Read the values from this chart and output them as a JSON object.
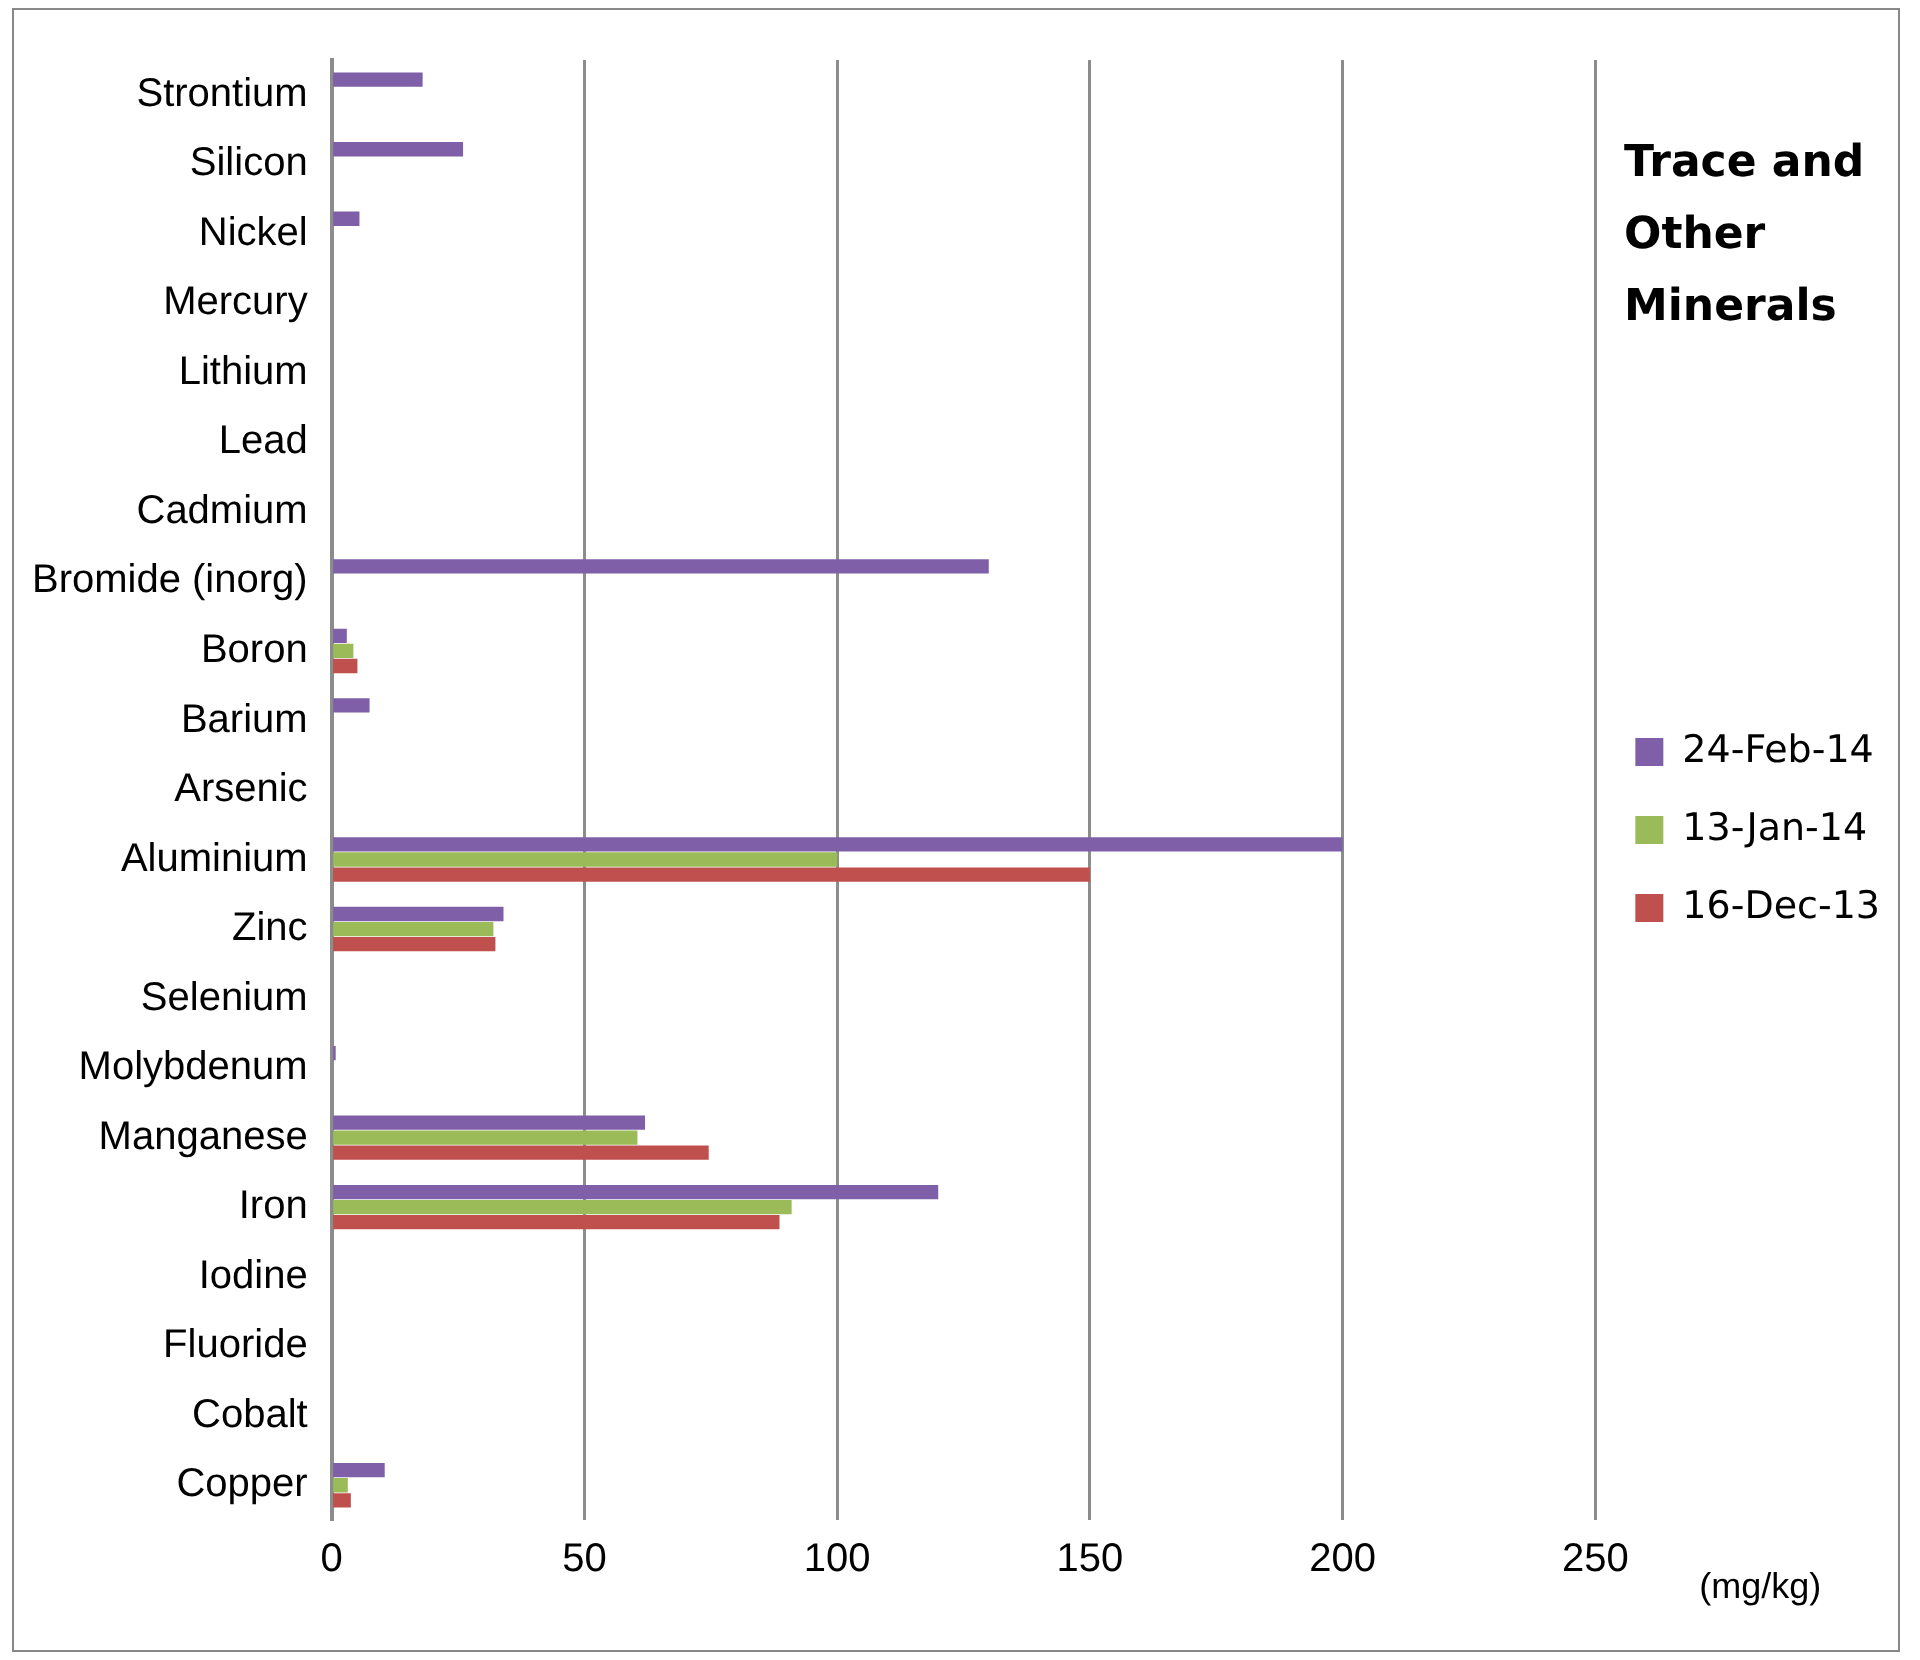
{
  "chart_data": {
    "type": "bar",
    "orientation": "horizontal",
    "title": "Trace and Other Minerals",
    "xlabel": "(mg/kg)",
    "categories": [
      "Strontium",
      "Silicon",
      "Nickel",
      "Mercury",
      "Lithium",
      "Lead",
      "Cadmium",
      "Bromide (inorg)",
      "Boron",
      "Barium",
      "Arsenic",
      "Aluminium",
      "Zinc",
      "Selenium",
      "Molybdenum",
      "Manganese",
      "Iron",
      "Iodine",
      "Fluoride",
      "Cobalt",
      "Copper"
    ],
    "series": [
      {
        "name": "24-Feb-14",
        "color": "#7f5fa8",
        "values": [
          18,
          26,
          5.5,
          null,
          null,
          null,
          null,
          130,
          3,
          7.5,
          null,
          200,
          34,
          null,
          0.8,
          62,
          120,
          null,
          null,
          null,
          10.5
        ]
      },
      {
        "name": "13-Jan-14",
        "color": "#9bbb59",
        "values": [
          null,
          null,
          null,
          null,
          null,
          null,
          null,
          null,
          4.3,
          null,
          null,
          100,
          32,
          null,
          null,
          60.5,
          91,
          null,
          null,
          null,
          3.2
        ]
      },
      {
        "name": "16-Dec-13",
        "color": "#c0504d",
        "values": [
          null,
          null,
          null,
          null,
          null,
          null,
          null,
          null,
          5.1,
          null,
          null,
          150,
          32.4,
          null,
          null,
          74.6,
          88.6,
          null,
          null,
          null,
          3.8
        ]
      }
    ],
    "xlim": [
      0,
      250
    ],
    "xticks": [
      0,
      50,
      100,
      150,
      200,
      250
    ],
    "grid": "x",
    "legend": "right"
  }
}
